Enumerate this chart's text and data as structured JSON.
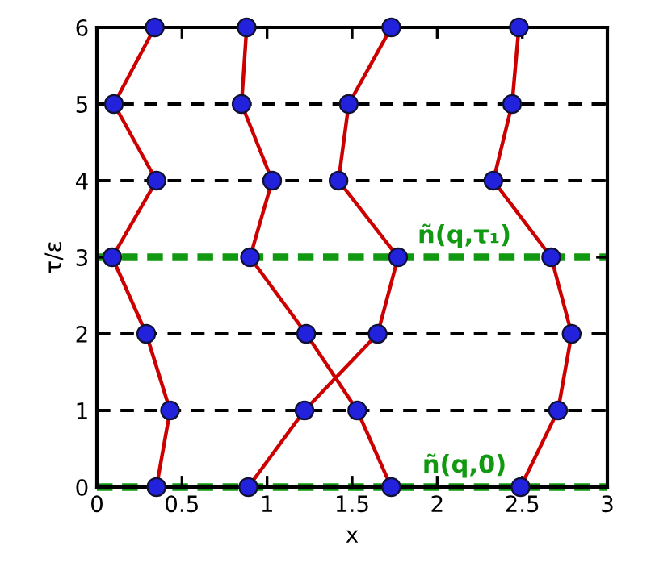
{
  "chart_data": {
    "type": "line",
    "xlabel": "x",
    "ylabel": "τ/ε",
    "series": [
      {
        "color": "#cc0000",
        "x": [
          0.35,
          0.43,
          0.29,
          0.09,
          0.35,
          0.1,
          0.34
        ],
        "values": [
          0,
          1,
          2,
          3,
          4,
          5,
          6
        ]
      },
      {
        "color": "#cc0000",
        "x": [
          1.73,
          1.53,
          1.23,
          0.9,
          1.03,
          0.85,
          0.88
        ],
        "values": [
          0,
          1,
          2,
          3,
          4,
          5,
          6
        ]
      },
      {
        "color": "#cc0000",
        "x": [
          0.89,
          1.22,
          1.65,
          1.77,
          1.42,
          1.48,
          1.73
        ],
        "values": [
          0,
          1,
          2,
          3,
          4,
          5,
          6
        ]
      },
      {
        "color": "#cc0000",
        "x": [
          2.49,
          2.71,
          2.79,
          2.67,
          2.33,
          2.44,
          2.48
        ],
        "values": [
          0,
          1,
          2,
          3,
          4,
          5,
          6
        ]
      }
    ],
    "marker": "circle",
    "line_style": "solid",
    "xlim": [
      0,
      3
    ],
    "ylim": [
      0,
      6
    ],
    "xticks": [
      0,
      0.5,
      1,
      1.5,
      2,
      2.5,
      3
    ],
    "yticks": [
      0,
      1,
      2,
      3,
      4,
      5,
      6
    ],
    "ref_lines": [
      {
        "axis": "y",
        "value": 0,
        "label": "ñ(q,0)",
        "color": "#119911",
        "line_style": "dotted"
      },
      {
        "axis": "y",
        "value": 1,
        "color": "#000000",
        "line_style": "dashed"
      },
      {
        "axis": "y",
        "value": 2,
        "color": "#000000",
        "line_style": "dashed"
      },
      {
        "axis": "y",
        "value": 3,
        "label": "ñ(q,τ₁)",
        "color": "#119911",
        "line_style": "dotted"
      },
      {
        "axis": "y",
        "value": 4,
        "color": "#000000",
        "line_style": "dashed"
      },
      {
        "axis": "y",
        "value": 5,
        "color": "#000000",
        "line_style": "dashed"
      }
    ],
    "grid": false
  }
}
